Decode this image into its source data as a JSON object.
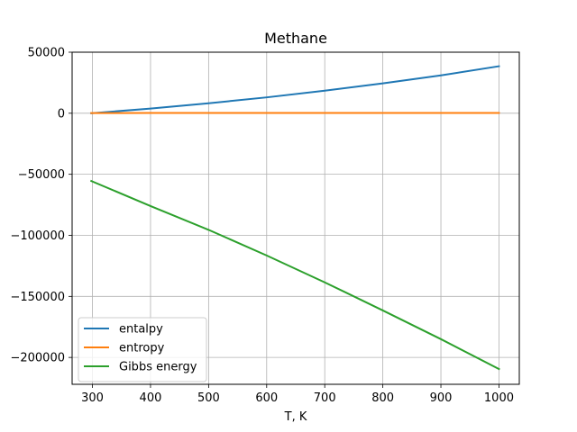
{
  "chart_data": {
    "type": "line",
    "title": "Methane",
    "xlabel": "T, K",
    "ylabel": "",
    "xlim": [
      265,
      1035
    ],
    "ylim": [
      -222000,
      50000
    ],
    "grid": true,
    "legend_position": "lower-left",
    "x_ticks": [
      300,
      400,
      500,
      600,
      700,
      800,
      900,
      1000
    ],
    "x_tick_labels": [
      "300",
      "400",
      "500",
      "600",
      "700",
      "800",
      "900",
      "1000"
    ],
    "y_ticks": [
      50000,
      0,
      -50000,
      -100000,
      -150000,
      -200000
    ],
    "y_tick_labels": [
      "50000",
      "0",
      "−50000",
      "−100000",
      "−150000",
      "−200000"
    ],
    "x": [
      298,
      400,
      500,
      600,
      700,
      800,
      900,
      1000
    ],
    "series": [
      {
        "name": "entalpy",
        "color": "#1f77b4",
        "values": [
          0,
          3800,
          8200,
          13000,
          18500,
          24500,
          31000,
          38500
        ]
      },
      {
        "name": "entropy",
        "color": "#ff7f0e",
        "values": [
          186,
          197,
          207,
          216,
          225,
          234,
          242,
          249
        ]
      },
      {
        "name": "Gibbs energy",
        "color": "#2ca02c",
        "values": [
          -55500,
          -76000,
          -95500,
          -116500,
          -138500,
          -161500,
          -185000,
          -209500
        ]
      }
    ]
  }
}
